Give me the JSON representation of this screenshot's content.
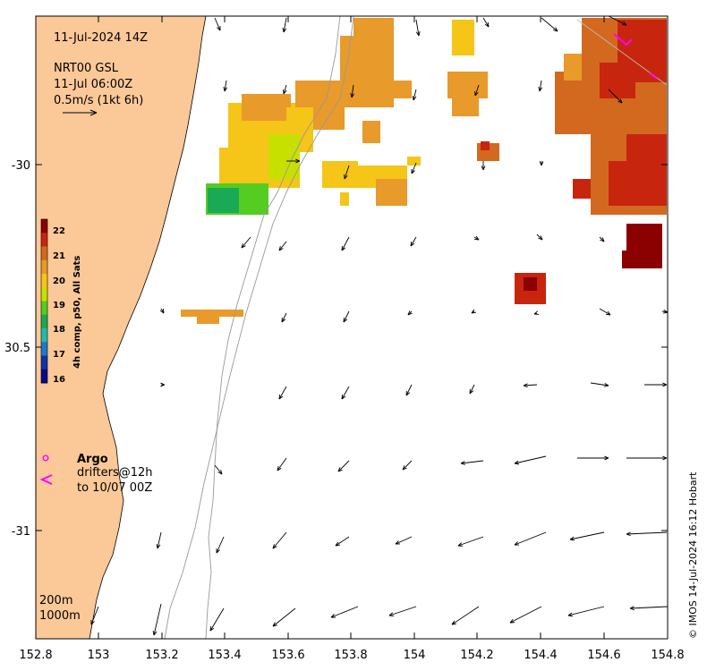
{
  "header": {
    "date": "11-Jul-2024 14Z",
    "product": "NRT00 GSL",
    "product_time": "11-Jul 06:00Z",
    "scale_label": "0.5m/s (1kt 6h)"
  },
  "axes": {
    "x_ticks": [
      "152.8",
      "153",
      "153.2",
      "153.4",
      "153.6",
      "153.8",
      "154",
      "154.2",
      "154.4",
      "154.6",
      "154.8"
    ],
    "y_ticks": [
      "-30",
      "30.5",
      "-31"
    ]
  },
  "colorbar": {
    "ticks": [
      "22",
      "21",
      "20",
      "19",
      "18",
      "17",
      "16"
    ],
    "label": "4h comp, p50, All Sats",
    "palette": [
      "#8b0000",
      "#c8250f",
      "#d2691e",
      "#e89a2a",
      "#f5c518",
      "#c8e000",
      "#55cc22",
      "#1aaa55",
      "#22bbaa",
      "#2277cc",
      "#1133aa",
      "#0a0a88"
    ]
  },
  "legend": {
    "argo_label": "Argo",
    "drifters_label": "drifters@12h",
    "drifters_period": "to 10/07 00Z",
    "argo_color": "#ff00ff"
  },
  "depth_contours": {
    "shallow_label": "200m",
    "deep_label": "1000m"
  },
  "credit": "© IMOS 14-Jul-2024 16:12 Hobart",
  "colors": {
    "land": "#fbc898",
    "contour": "#999999",
    "arrow": "#000000",
    "drifter": "#ff00ff"
  }
}
